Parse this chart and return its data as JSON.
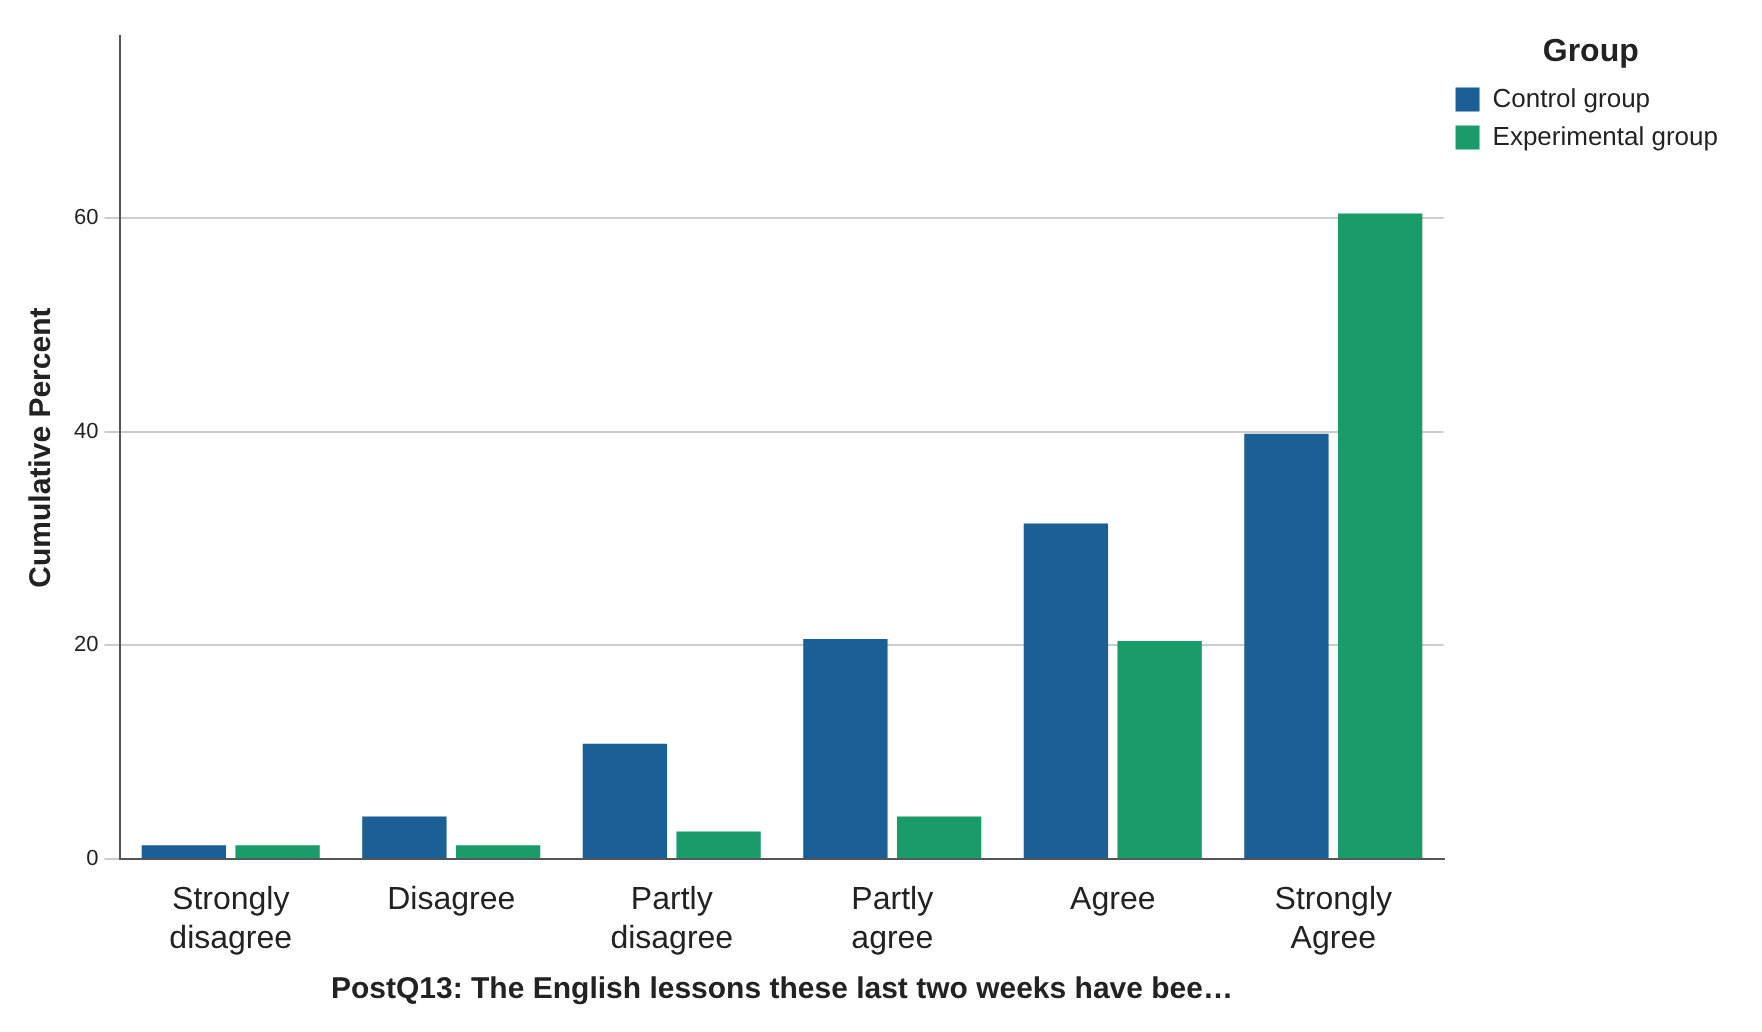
{
  "chart_data": {
    "type": "bar",
    "xlabel": "PostQ13: The English lessons these last two weeks have bee…",
    "ylabel": "Cumulative Percent",
    "legend_title": "Group",
    "categories": [
      "Strongly disagree",
      "Disagree",
      "Partly disagree",
      "Partly agree",
      "Agree",
      "Strongly Agree"
    ],
    "series": [
      {
        "name": "Control group",
        "color": "#1b5f97",
        "values": [
          1.3,
          4.0,
          10.8,
          20.6,
          31.4,
          39.8
        ]
      },
      {
        "name": "Experimental group",
        "color": "#1a9b6a",
        "values": [
          1.3,
          1.3,
          2.6,
          4.0,
          20.4,
          60.4
        ]
      }
    ],
    "ylim": [
      0,
      77
    ],
    "yticks": [
      0,
      20,
      40,
      60
    ],
    "grid": "y",
    "legend": "top right"
  }
}
